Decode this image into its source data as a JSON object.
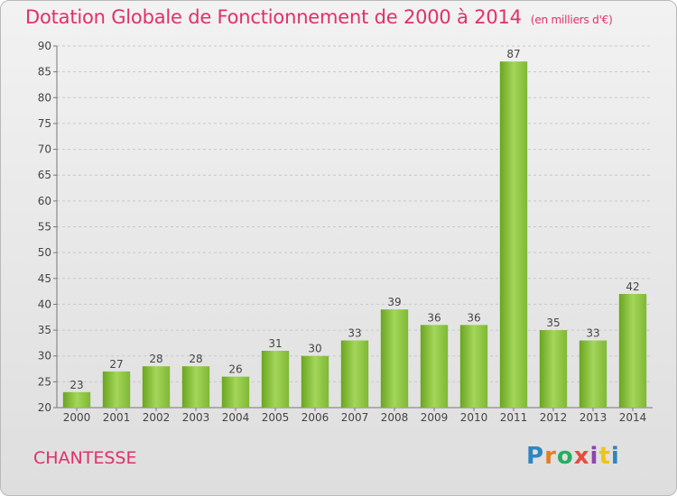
{
  "header": {
    "title": "Dotation Globale de Fonctionnement de 2000 à 2014",
    "subtitle": "(en milliers d'€)"
  },
  "footer": {
    "commune": "CHANTESSE",
    "logo_text": "Proxiti",
    "logo_colors": [
      "#2e86c1",
      "#e67e22",
      "#27ae60",
      "#e74c3c",
      "#8e44ad",
      "#f1c40f",
      "#2e86c1"
    ]
  },
  "colors": {
    "accent": "#e0306a",
    "bar_light": "#a3d65a",
    "bar_dark": "#6aa51f"
  },
  "chart_data": {
    "type": "bar",
    "categories": [
      "2000",
      "2001",
      "2002",
      "2003",
      "2004",
      "2005",
      "2006",
      "2007",
      "2008",
      "2009",
      "2010",
      "2011",
      "2012",
      "2013",
      "2014"
    ],
    "values": [
      23,
      27,
      28,
      28,
      26,
      31,
      30,
      33,
      39,
      36,
      36,
      87,
      35,
      33,
      42
    ],
    "ylim": [
      20,
      90
    ],
    "yticks": [
      20,
      25,
      30,
      35,
      40,
      45,
      50,
      55,
      60,
      65,
      70,
      75,
      80,
      85,
      90
    ],
    "grid": "horizontal dashed"
  }
}
